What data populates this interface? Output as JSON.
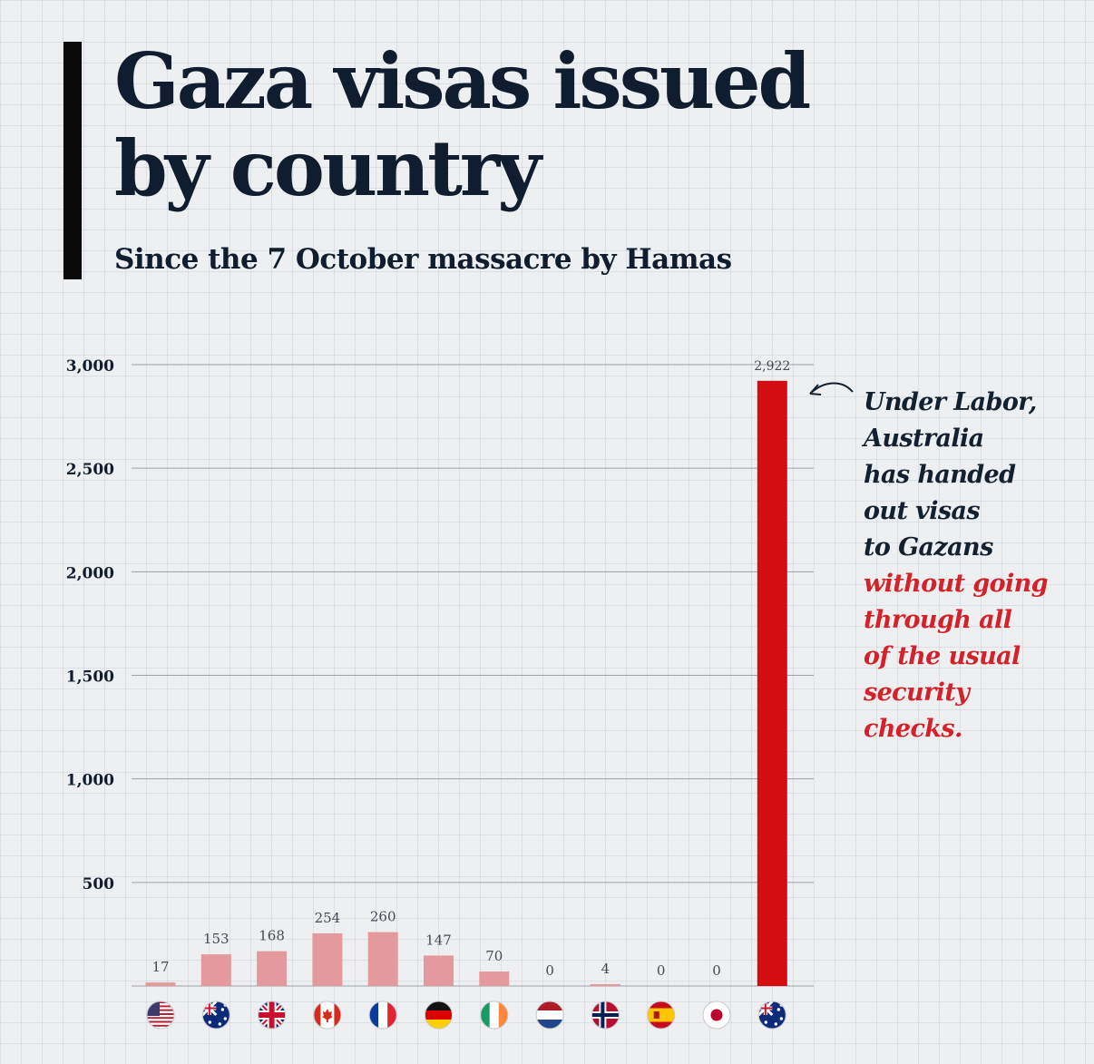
{
  "header": {
    "title_line1": "Gaza visas issued",
    "title_line2": "by country",
    "subtitle": "Since the 7 October massacre by Hamas"
  },
  "annotation": {
    "lines_dark": [
      "Under Labor,",
      "Australia",
      "has handed",
      "out visas",
      "to Gazans"
    ],
    "lines_red": [
      "without going",
      "through all",
      "of the usual",
      "security",
      "checks."
    ]
  },
  "colors": {
    "bar_pale": "#e49a9c",
    "bar_highlight": "#d40d12",
    "text_dark": "#0f1d2e",
    "annotation_red": "#d3222a"
  },
  "chart_data": {
    "type": "bar",
    "title": "Gaza visas issued by country",
    "subtitle": "Since the 7 October massacre by Hamas",
    "categories": [
      "United States",
      "Australia",
      "United Kingdom",
      "Canada",
      "France",
      "Germany",
      "Ireland",
      "Netherlands",
      "Norway",
      "Spain",
      "Japan",
      "Australia"
    ],
    "category_icons": [
      "us-flag-icon",
      "australia-flag-icon",
      "uk-flag-icon",
      "canada-flag-icon",
      "france-flag-icon",
      "germany-flag-icon",
      "ireland-flag-icon",
      "netherlands-flag-icon",
      "norway-flag-icon",
      "spain-flag-icon",
      "japan-flag-icon",
      "australia-flag-icon"
    ],
    "values": [
      17,
      153,
      168,
      254,
      260,
      147,
      70,
      0,
      4,
      0,
      0,
      2922
    ],
    "value_labels": [
      "17",
      "153",
      "168",
      "254",
      "260",
      "147",
      "70",
      "0",
      "4",
      "0",
      "0",
      "2,922"
    ],
    "highlight_index": 11,
    "yticks": [
      500,
      1000,
      1500,
      2000,
      2500,
      3000
    ],
    "ytick_labels": [
      "500",
      "1,000",
      "1,500",
      "2,000",
      "2,500",
      "3,000"
    ],
    "ylim": [
      0,
      3000
    ],
    "grid": true,
    "xlabel": "",
    "ylabel": ""
  }
}
